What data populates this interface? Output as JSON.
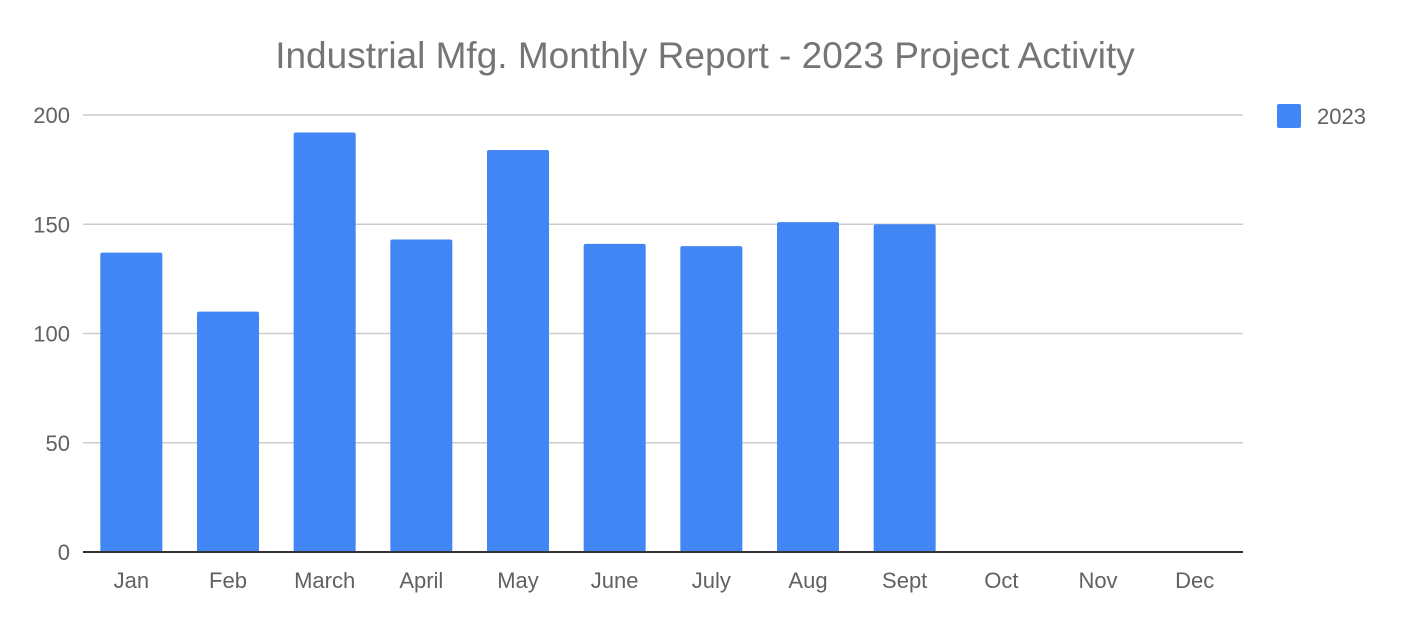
{
  "chart_data": {
    "type": "bar",
    "title": "Industrial Mfg. Monthly Report - 2023 Project Activity",
    "xlabel": "",
    "ylabel": "",
    "categories": [
      "Jan",
      "Feb",
      "March",
      "April",
      "May",
      "June",
      "July",
      "Aug",
      "Sept",
      "Oct",
      "Nov",
      "Dec"
    ],
    "series": [
      {
        "name": "2023",
        "color": "#4285f4",
        "values": [
          137,
          110,
          192,
          143,
          184,
          141,
          140,
          151,
          150,
          null,
          null,
          null
        ]
      }
    ],
    "ylim": [
      0,
      200
    ],
    "yticks": [
      0,
      50,
      100,
      150,
      200
    ],
    "grid": true,
    "legend_position": "top-right"
  }
}
